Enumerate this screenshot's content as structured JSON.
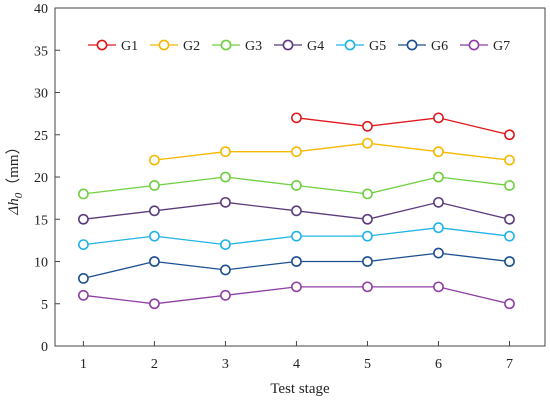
{
  "chart_data": {
    "type": "line",
    "xlabel": "Test stage",
    "ylabel": "Δh0（mm）",
    "ylabel_parts": {
      "symbol": "Δh",
      "subscript": "0",
      "unit": "（mm）"
    },
    "x": [
      1,
      2,
      3,
      4,
      5,
      6,
      7
    ],
    "xlim": [
      0.6,
      7.5
    ],
    "ylim": [
      0,
      40
    ],
    "yticks": [
      0,
      5,
      10,
      15,
      20,
      25,
      30,
      35,
      40
    ],
    "grid": false,
    "legend_position": "top",
    "series": [
      {
        "name": "G1",
        "color": "#e0191f",
        "x": [
          4,
          5,
          6,
          7
        ],
        "values": [
          27,
          26,
          27,
          25
        ]
      },
      {
        "name": "G2",
        "color": "#f5b800",
        "x": [
          2,
          3,
          4,
          5,
          6,
          7
        ],
        "values": [
          22,
          23,
          23,
          24,
          23,
          22
        ]
      },
      {
        "name": "G3",
        "color": "#6fcf3f",
        "x": [
          1,
          2,
          3,
          4,
          5,
          6,
          7
        ],
        "values": [
          18,
          19,
          20,
          19,
          18,
          20,
          19
        ]
      },
      {
        "name": "G4",
        "color": "#5c3b7d",
        "x": [
          1,
          2,
          3,
          4,
          5,
          6,
          7
        ],
        "values": [
          15,
          16,
          17,
          16,
          15,
          17,
          15
        ]
      },
      {
        "name": "G5",
        "color": "#1fb3e6",
        "x": [
          1,
          2,
          3,
          4,
          5,
          6,
          7
        ],
        "values": [
          12,
          13,
          12,
          13,
          13,
          14,
          13
        ]
      },
      {
        "name": "G6",
        "color": "#1d4f91",
        "x": [
          1,
          2,
          3,
          4,
          5,
          6,
          7
        ],
        "values": [
          8,
          10,
          9,
          10,
          10,
          11,
          10
        ]
      },
      {
        "name": "G7",
        "color": "#8e3fa3",
        "x": [
          1,
          2,
          3,
          4,
          5,
          6,
          7
        ],
        "values": [
          6,
          5,
          6,
          7,
          7,
          7,
          5
        ]
      }
    ]
  }
}
